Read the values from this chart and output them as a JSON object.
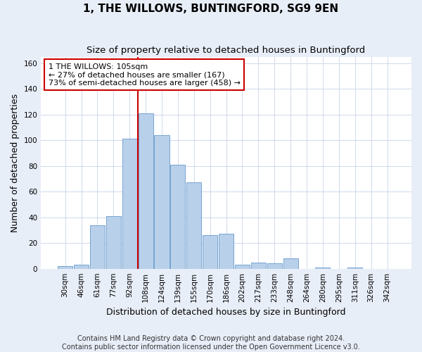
{
  "title": "1, THE WILLOWS, BUNTINGFORD, SG9 9EN",
  "subtitle": "Size of property relative to detached houses in Buntingford",
  "xlabel": "Distribution of detached houses by size in Buntingford",
  "ylabel": "Number of detached properties",
  "bar_labels": [
    "30sqm",
    "46sqm",
    "61sqm",
    "77sqm",
    "92sqm",
    "108sqm",
    "124sqm",
    "139sqm",
    "155sqm",
    "170sqm",
    "186sqm",
    "202sqm",
    "217sqm",
    "233sqm",
    "248sqm",
    "264sqm",
    "280sqm",
    "295sqm",
    "311sqm",
    "326sqm",
    "342sqm"
  ],
  "bar_values": [
    2,
    3,
    34,
    41,
    101,
    121,
    104,
    81,
    67,
    26,
    27,
    3,
    5,
    4,
    8,
    0,
    1,
    0,
    1,
    0,
    0
  ],
  "bar_color": "#b8d0ea",
  "bar_edge_color": "#6699cc",
  "ylim": [
    0,
    165
  ],
  "yticks": [
    0,
    20,
    40,
    60,
    80,
    100,
    120,
    140,
    160
  ],
  "property_label": "1 THE WILLOWS: 105sqm",
  "annotation_line1": "← 27% of detached houses are smaller (167)",
  "annotation_line2": "73% of semi-detached houses are larger (458) →",
  "vline_bin_index": 5,
  "footer_line1": "Contains HM Land Registry data © Crown copyright and database right 2024.",
  "footer_line2": "Contains public sector information licensed under the Open Government Licence v3.0.",
  "background_color": "#e8eef8",
  "plot_bg_color": "#ffffff",
  "grid_color": "#c8d4e8",
  "vline_color": "#cc0000",
  "annotation_box_color": "#ffffff",
  "annotation_box_edge": "#cc0000",
  "title_fontsize": 11,
  "subtitle_fontsize": 9.5,
  "axis_label_fontsize": 9,
  "tick_fontsize": 7.5,
  "annotation_fontsize": 8,
  "footer_fontsize": 7
}
